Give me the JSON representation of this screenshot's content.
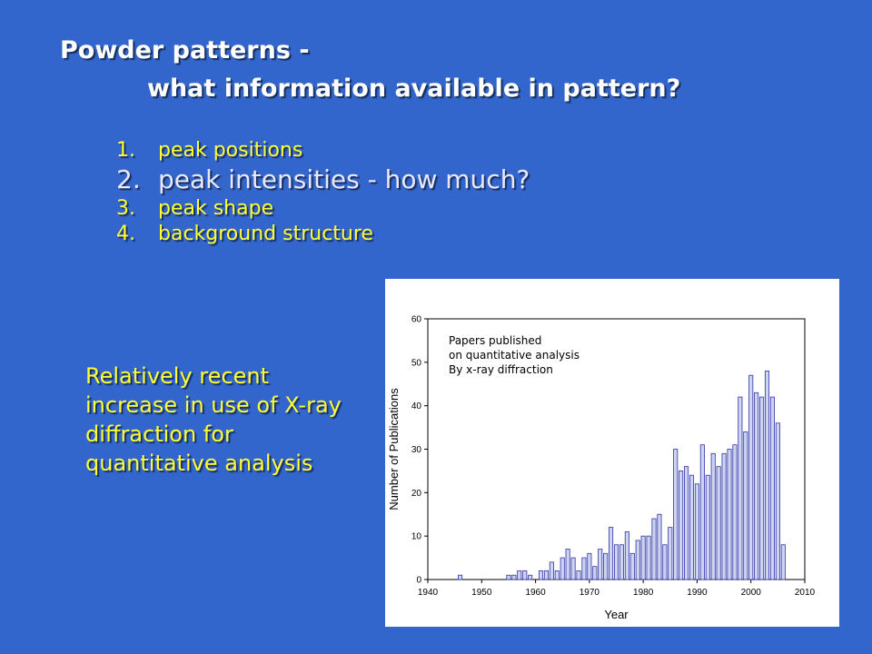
{
  "slide": {
    "title_line1": "Powder patterns -",
    "title_line2": "what information available in pattern?",
    "points": [
      {
        "number": "1.",
        "text": "peak positions",
        "emphasis": false
      },
      {
        "number": "2.",
        "text": "peak intensities - how much?",
        "emphasis": true
      },
      {
        "number": "3.",
        "text": "peak shape",
        "emphasis": false
      },
      {
        "number": "4.",
        "text": "background structure",
        "emphasis": false
      }
    ],
    "side_note": "Relatively recent increase in use of X-ray diffraction for quantitative analysis",
    "colors": {
      "background": "#3366cc",
      "title": "#ffffff",
      "list": "#ffff33",
      "bar_fill": "#ccd4f0",
      "bar_stroke": "#3333aa"
    }
  },
  "chart_data": {
    "type": "bar",
    "title": "",
    "xlabel": "Year",
    "ylabel": "Number of Publications",
    "annotation": [
      "Papers published",
      "on quantitative analysis",
      "By x-ray diffraction"
    ],
    "xlim": [
      1940,
      2010
    ],
    "ylim": [
      0,
      60
    ],
    "xticks": [
      1940,
      1950,
      1960,
      1970,
      1980,
      1990,
      2000,
      2010
    ],
    "yticks": [
      0,
      10,
      20,
      30,
      40,
      50,
      60
    ],
    "grid": false,
    "x": [
      1946,
      1955,
      1956,
      1957,
      1958,
      1959,
      1961,
      1962,
      1963,
      1964,
      1965,
      1966,
      1967,
      1968,
      1969,
      1970,
      1971,
      1972,
      1973,
      1974,
      1975,
      1976,
      1977,
      1978,
      1979,
      1980,
      1981,
      1982,
      1983,
      1984,
      1985,
      1986,
      1987,
      1988,
      1989,
      1990,
      1991,
      1992,
      1993,
      1994,
      1995,
      1996,
      1997,
      1998,
      1999,
      2000,
      2001,
      2002,
      2003,
      2004,
      2005,
      2006
    ],
    "values": [
      1,
      1,
      1,
      2,
      2,
      1,
      2,
      2,
      4,
      2,
      5,
      7,
      5,
      2,
      5,
      6,
      3,
      7,
      6,
      12,
      8,
      8,
      11,
      6,
      9,
      10,
      10,
      14,
      15,
      8,
      12,
      30,
      25,
      26,
      24,
      22,
      31,
      24,
      29,
      26,
      29,
      30,
      31,
      42,
      34,
      47,
      43,
      42,
      48,
      42,
      36,
      8
    ]
  }
}
